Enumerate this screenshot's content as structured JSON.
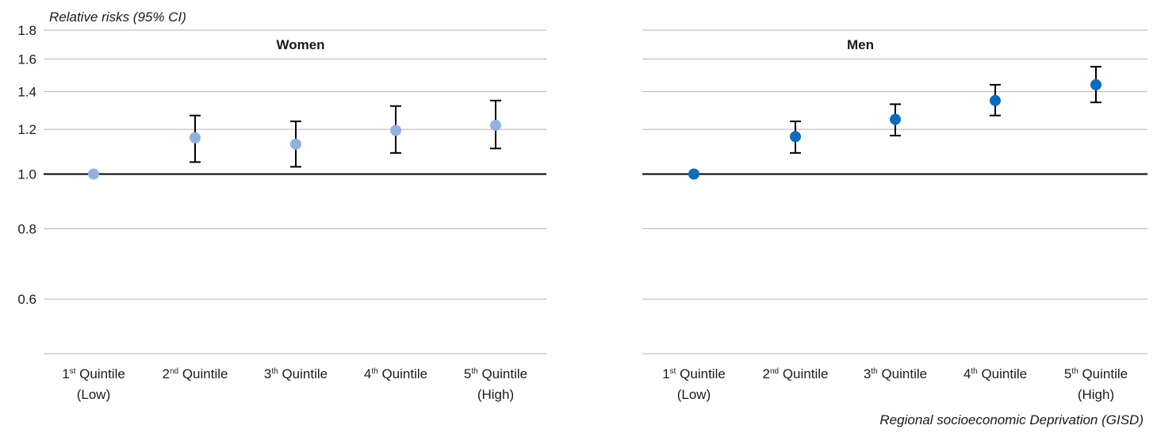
{
  "chart_data": {
    "type": "scatter",
    "ylabel": "Relative risks (95% CI)",
    "xlabel": "Regional socioeconomic Deprivation (GISD)",
    "y_scale": "log",
    "ylim": [
      0.48,
      1.8
    ],
    "yticks": [
      1.8,
      1.6,
      1.4,
      1.2,
      1.0,
      0.8,
      0.6
    ],
    "ytick_labels": [
      "1.8",
      "1.6",
      "1.4",
      "1.2",
      "1.0",
      "0.8",
      "0.6"
    ],
    "reference_line": 1.0,
    "grid": true,
    "categories": [
      {
        "ord": "1",
        "sup": "st",
        "rest": " Quintile",
        "line2": "(Low)"
      },
      {
        "ord": "2",
        "sup": "nd",
        "rest": " Quintile",
        "line2": ""
      },
      {
        "ord": "3",
        "sup": "th",
        "rest": " Quintile",
        "line2": ""
      },
      {
        "ord": "4",
        "sup": "th",
        "rest": " Quintile",
        "line2": ""
      },
      {
        "ord": "5",
        "sup": "th",
        "rest": " Quintile",
        "line2": "(High)"
      }
    ],
    "panels": [
      {
        "title": "Women",
        "color": "#8fb2e0",
        "estimates": [
          1.0,
          1.16,
          1.13,
          1.195,
          1.22
        ],
        "ci_lower": [
          null,
          1.05,
          1.03,
          1.09,
          1.11
        ],
        "ci_upper": [
          null,
          1.27,
          1.24,
          1.32,
          1.35
        ]
      },
      {
        "title": "Men",
        "color": "#0b6cbf",
        "estimates": [
          1.0,
          1.165,
          1.25,
          1.35,
          1.44
        ],
        "ci_lower": [
          null,
          1.09,
          1.17,
          1.27,
          1.34
        ],
        "ci_upper": [
          null,
          1.24,
          1.33,
          1.44,
          1.55
        ]
      }
    ]
  }
}
